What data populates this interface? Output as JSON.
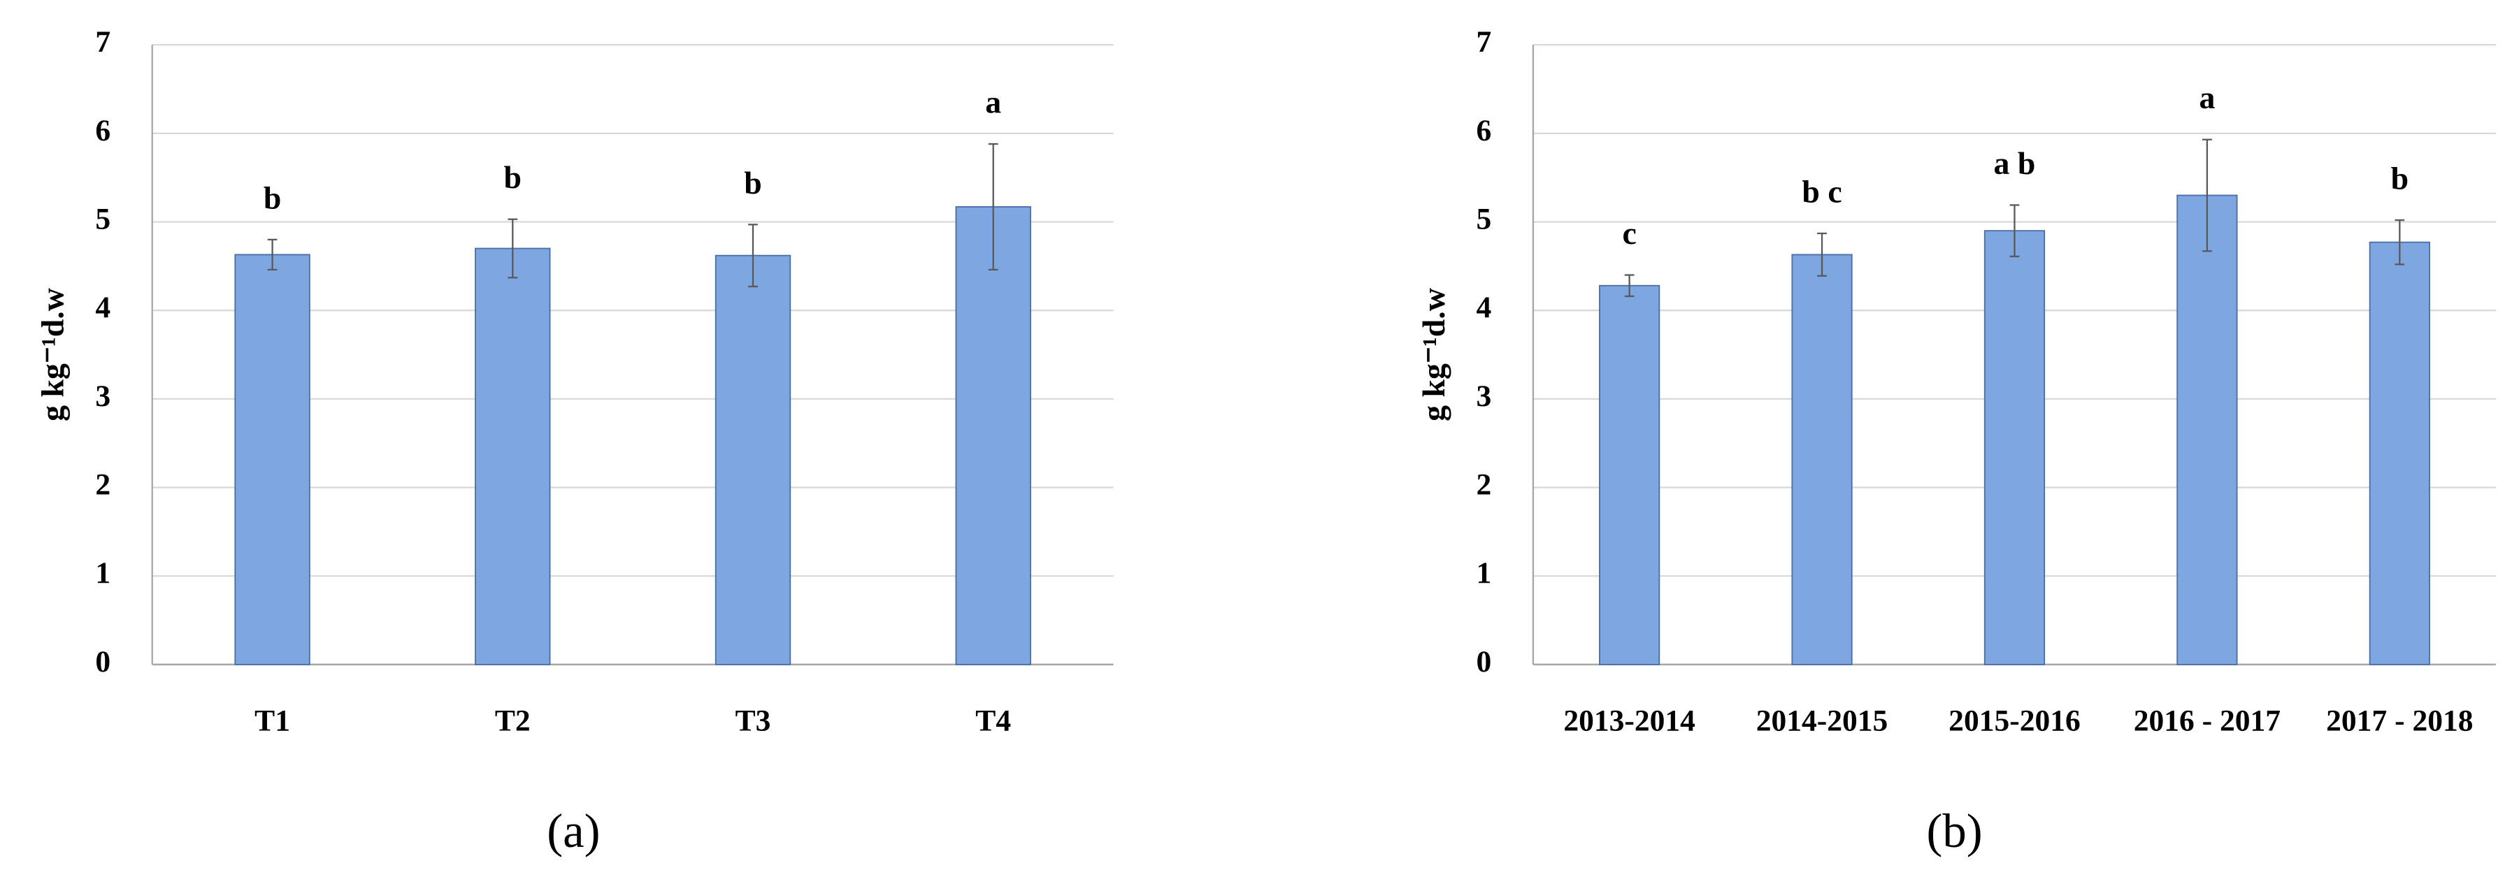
{
  "chart_data": [
    {
      "type": "bar",
      "categories": [
        "T1",
        "T2",
        "T3",
        "T4"
      ],
      "values": [
        4.63,
        4.7,
        4.62,
        5.17
      ],
      "errors": [
        0.17,
        0.33,
        0.35,
        0.71
      ],
      "annotations": [
        "b",
        "b",
        "b",
        "a"
      ],
      "ylabel": "g kg⁻¹d.w",
      "caption": "(a)",
      "color": "#7ea6e0",
      "ylim": [
        0,
        7
      ],
      "yticks": [
        0,
        1,
        2,
        3,
        4,
        5,
        6,
        7
      ],
      "grid": true
    },
    {
      "type": "bar",
      "categories": [
        "2013-2014",
        "2014-2015",
        "2015-2016",
        "2016 - 2017",
        "2017 - 2018"
      ],
      "values": [
        4.28,
        4.63,
        4.9,
        5.3,
        4.77
      ],
      "errors": [
        0.12,
        0.24,
        0.29,
        0.63,
        0.25
      ],
      "annotations": [
        "c",
        "b c",
        "a b",
        "a",
        "b"
      ],
      "ylabel": "g kg⁻¹d.w",
      "caption": "(b)",
      "color": "#7ea6e0",
      "ylim": [
        0,
        7
      ],
      "yticks": [
        0,
        1,
        2,
        3,
        4,
        5,
        6,
        7
      ],
      "grid": true
    }
  ]
}
